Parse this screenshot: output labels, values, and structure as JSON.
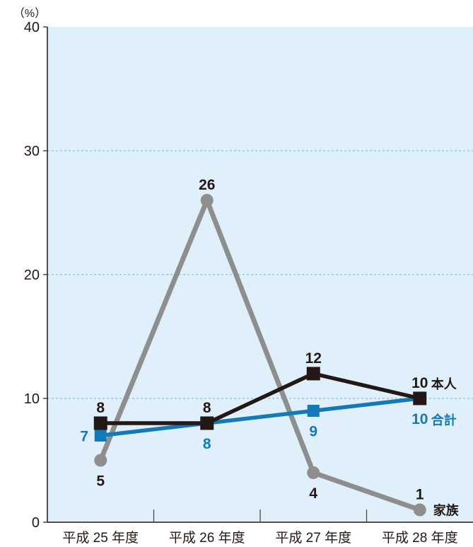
{
  "chart_data": {
    "type": "line",
    "categories": [
      "平成 25 年度",
      "平成 26 年度",
      "平成 27 年度",
      "平成 28 年度"
    ],
    "series": [
      {
        "name": "家族",
        "values": [
          5,
          26,
          4,
          1
        ],
        "color": "#8e8e8e",
        "label_color": "#231815",
        "marker": "circle"
      },
      {
        "name": "合計",
        "values": [
          7,
          8,
          9,
          10
        ],
        "color": "#1479b8",
        "label_color": "#1479b8",
        "marker": "square"
      },
      {
        "name": "本人",
        "values": [
          8,
          8,
          12,
          10
        ],
        "color": "#231815",
        "label_color": "#231815",
        "marker": "square"
      }
    ],
    "y_unit": "（%）",
    "ylim": [
      0,
      40
    ],
    "yticks": [
      0,
      10,
      20,
      30,
      40
    ],
    "grid": true,
    "plot_background": "#dff0fa",
    "grid_color": "#5bbde6"
  }
}
